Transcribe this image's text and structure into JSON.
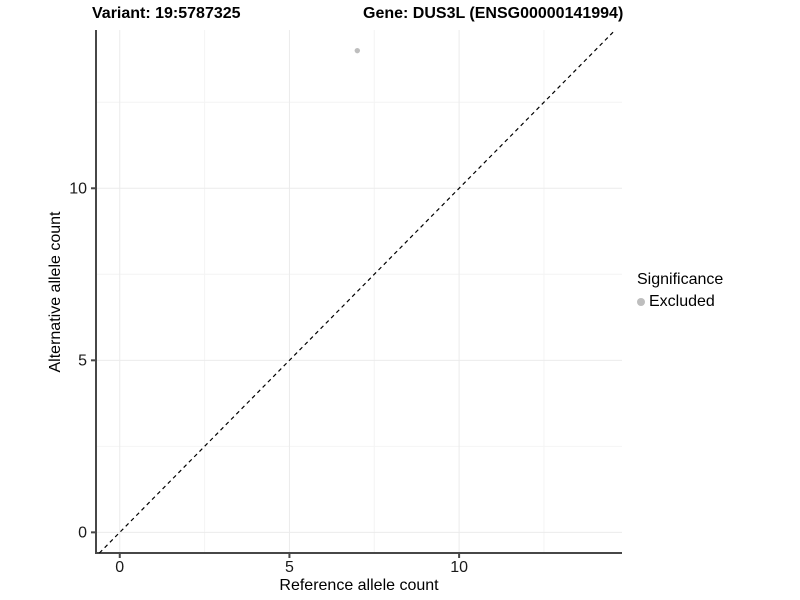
{
  "chart_data": {
    "type": "scatter",
    "title_left": "Variant: 19:5787325",
    "title_right": "Gene: DUS3L (ENSG00000141994)",
    "xlabel": "Reference allele count",
    "ylabel": "Alternative allele count",
    "xlim": [
      -0.7,
      14.8
    ],
    "ylim": [
      -0.6,
      14.6
    ],
    "x_major_ticks": [
      0,
      5,
      10
    ],
    "y_major_ticks": [
      0,
      5,
      10
    ],
    "x_minor_gridlines": [
      2.5,
      7.5,
      12.5
    ],
    "y_minor_gridlines": [
      2.5,
      7.5,
      12.5
    ],
    "grid": true,
    "legend": {
      "title": "Significance",
      "position": "right",
      "entries": [
        {
          "label": "Excluded",
          "color": "#bebebe"
        }
      ]
    },
    "reference_line": {
      "kind": "identity",
      "style": "dashed",
      "color": "#000000"
    },
    "series": [
      {
        "name": "Excluded",
        "color": "#bebebe",
        "points": [
          {
            "x": 7,
            "y": 14
          }
        ]
      }
    ],
    "colors": {
      "axis_line": "#474747",
      "tick_mark": "#474747",
      "grid_major": "#ebebeb",
      "grid_minor": "#f4f4f4",
      "tick_label": "#1a1a1a",
      "point_gray": "#bebebe"
    }
  }
}
